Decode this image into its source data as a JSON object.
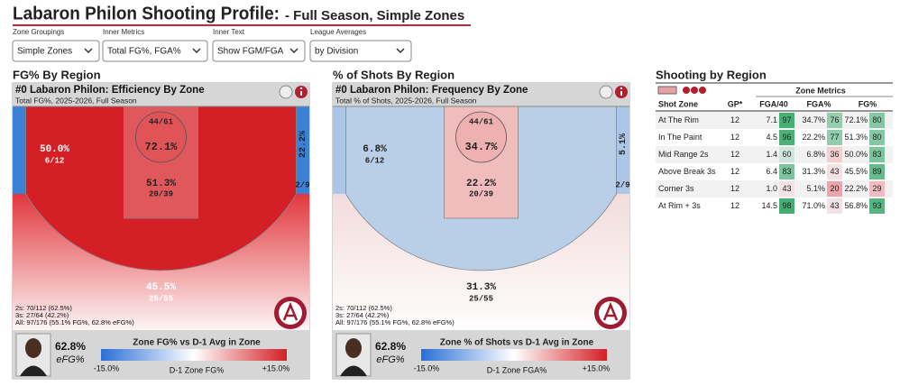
{
  "header": {
    "title": "Labaron Philon Shooting Profile:",
    "subtitle": "- Full Season, Simple Zones"
  },
  "controls": [
    {
      "label": "Zone Groupings",
      "value": "Simple Zones"
    },
    {
      "label": "Inner Metrics",
      "value": "Total FG%, FGA%"
    },
    {
      "label": "Inner Text",
      "value": "Show FGM/FGA"
    },
    {
      "label": "League Averages",
      "value": "by Division"
    }
  ],
  "panels": [
    {
      "section_title": "FG% By Region",
      "card_title": "#0 Labaron Philon: Efficiency By Zone",
      "card_subtitle": "Total FG%, 2025-2026, Full Season",
      "zones": [
        {
          "pct": "72.1%",
          "shots": "44/61",
          "color": "#e05458"
        },
        {
          "pct": "50.0%",
          "shots": "6/12",
          "color": "#d41f26"
        },
        {
          "pct": "51.3%",
          "shots": "20/39",
          "color": "#e0585c"
        },
        {
          "pct": "22.2%",
          "shots": "2/9",
          "color": "#3b82d6"
        },
        {
          "pct": "45.5%",
          "shots": "25/55",
          "color": "#e0383d"
        }
      ],
      "stats": [
        "2s: 70/112 (62.5%)",
        "3s: 27/64 (42.2%)",
        "All: 97/176 (55.1% FG%, 62.8% eFG%)"
      ],
      "efg": "62.8%",
      "efg_label": "eFG%",
      "legend": {
        "title": "Zone FG% vs D-1 Avg in Zone",
        "min": "-15.0%",
        "label": "D-1 Zone FG%",
        "max": "+15.0%"
      }
    },
    {
      "section_title": "% of Shots By Region",
      "card_title": "#0 Labaron Philon: Frequency By Zone",
      "card_subtitle": "Total % of Shots, 2025-2026, Full Season",
      "zones": [
        {
          "pct": "34.7%",
          "shots": "44/61",
          "color": "#eeb0b0"
        },
        {
          "pct": "6.8%",
          "shots": "6/12",
          "color": "#b9cfe8"
        },
        {
          "pct": "22.2%",
          "shots": "20/39",
          "color": "#f0bcbc"
        },
        {
          "pct": "5.1%",
          "shots": "2/9",
          "color": "#abc6e6"
        },
        {
          "pct": "31.3%",
          "shots": "25/55",
          "color": "#f3dcdc"
        }
      ],
      "stats": [
        "2s: 70/112 (62.5%)",
        "3s: 27/64 (42.2%)",
        "All: 97/176 (55.1% FG%, 62.8% eFG%)"
      ],
      "efg": "62.8%",
      "efg_label": "eFG%",
      "legend": {
        "title": "Zone % of Shots vs D-1 Avg in Zone",
        "min": "-15.0%",
        "label": "D-1 Zone FGA%",
        "max": "+15.0%"
      }
    }
  ],
  "table": {
    "title": "Shooting by Region",
    "group_header": "Zone Metrics",
    "columns": [
      "Shot Zone",
      "GP*",
      "FGA/40",
      "FGA%",
      "FG%"
    ],
    "rows": [
      [
        "At The Rim",
        "12",
        "7.1",
        97,
        "34.7%",
        76,
        "72.1%",
        80
      ],
      [
        "In The Paint",
        "12",
        "4.5",
        96,
        "22.2%",
        77,
        "51.3%",
        80
      ],
      [
        "Mid Range 2s",
        "12",
        "1.4",
        60,
        "6.8%",
        36,
        "50.0%",
        83
      ],
      [
        "Above Break 3s",
        "12",
        "6.4",
        83,
        "31.3%",
        43,
        "45.5%",
        89
      ],
      [
        "Corner 3s",
        "12",
        "1.0",
        43,
        "5.1%",
        20,
        "22.2%",
        29
      ],
      [
        "At Rim + 3s",
        "12",
        "14.5",
        98,
        "71.0%",
        43,
        "56.8%",
        93
      ]
    ]
  }
}
